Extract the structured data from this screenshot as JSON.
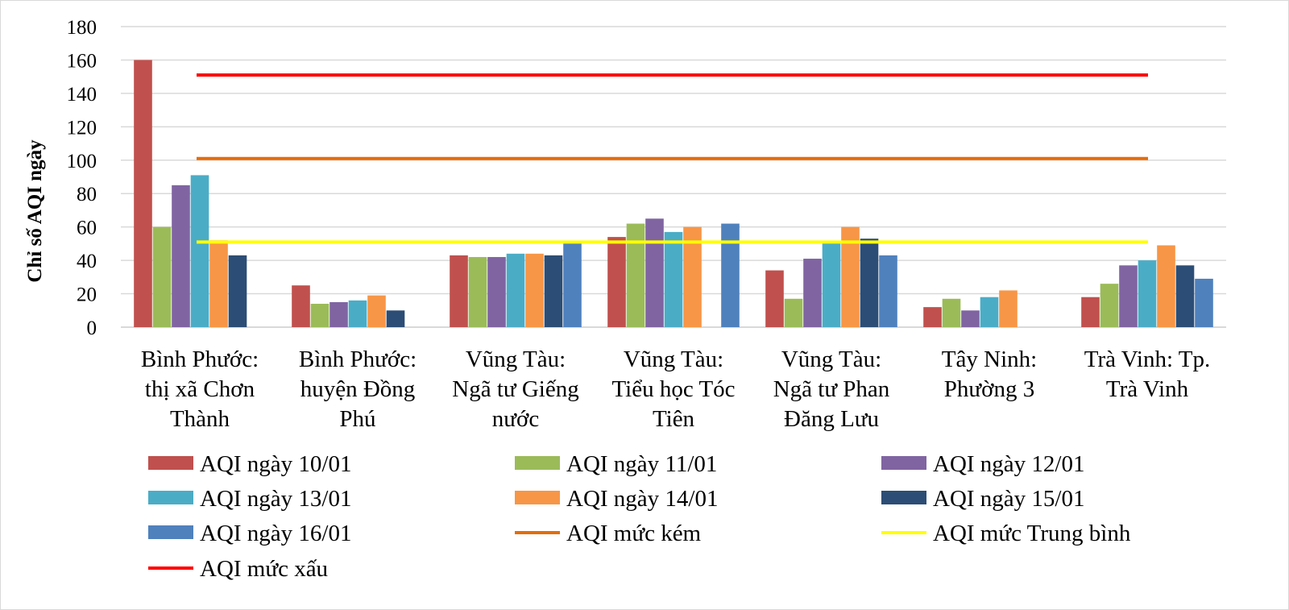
{
  "chart_data": {
    "type": "bar",
    "title": "",
    "ylabel": "Chỉ số AQI ngày",
    "xlabel": "",
    "ylim": [
      0,
      180
    ],
    "yticks": [
      0,
      20,
      40,
      60,
      80,
      100,
      120,
      140,
      160,
      180
    ],
    "grid": true,
    "legend_position": "bottom",
    "categories": [
      [
        "Bình Phước:",
        "thị xã Chơn",
        "Thành"
      ],
      [
        "Bình Phước:",
        "huyện Đồng",
        "Phú"
      ],
      [
        "Vũng Tàu:",
        "Ngã tư Giếng",
        "nước"
      ],
      [
        "Vũng Tàu:",
        "Tiểu học Tóc",
        "Tiên"
      ],
      [
        "Vũng Tàu:",
        "Ngã tư Phan",
        "Đăng Lưu"
      ],
      [
        "Tây Ninh:",
        "Phường 3"
      ],
      [
        "Trà Vinh: Tp.",
        "Trà Vinh"
      ]
    ],
    "series": [
      {
        "name": "AQI ngày 10/01",
        "color": "#c0504d",
        "values": [
          160,
          25,
          43,
          54,
          34,
          12,
          18
        ]
      },
      {
        "name": "AQI ngày 11/01",
        "color": "#9bbb59",
        "values": [
          60,
          14,
          42,
          62,
          17,
          17,
          26
        ]
      },
      {
        "name": "AQI ngày 12/01",
        "color": "#8064a2",
        "values": [
          85,
          15,
          42,
          65,
          41,
          10,
          37
        ]
      },
      {
        "name": "AQI ngày 13/01",
        "color": "#4bacc6",
        "values": [
          91,
          16,
          44,
          57,
          51,
          18,
          40
        ]
      },
      {
        "name": "AQI ngày 14/01",
        "color": "#f79646",
        "values": [
          52,
          19,
          44,
          60,
          60,
          22,
          49
        ]
      },
      {
        "name": "AQI ngày 15/01",
        "color": "#2c4d75",
        "values": [
          43,
          10,
          43,
          null,
          53,
          null,
          37
        ]
      },
      {
        "name": "AQI ngày 16/01",
        "color": "#4f81bd",
        "values": [
          null,
          null,
          51,
          62,
          43,
          null,
          29
        ]
      }
    ],
    "reference_lines": [
      {
        "name": "AQI mức kém",
        "color": "#e46c0a",
        "value": 101
      },
      {
        "name": "AQI mức Trung bình",
        "color": "#ffff00",
        "value": 51
      },
      {
        "name": "AQI mức xấu",
        "color": "#ff0000",
        "value": 151
      }
    ]
  }
}
